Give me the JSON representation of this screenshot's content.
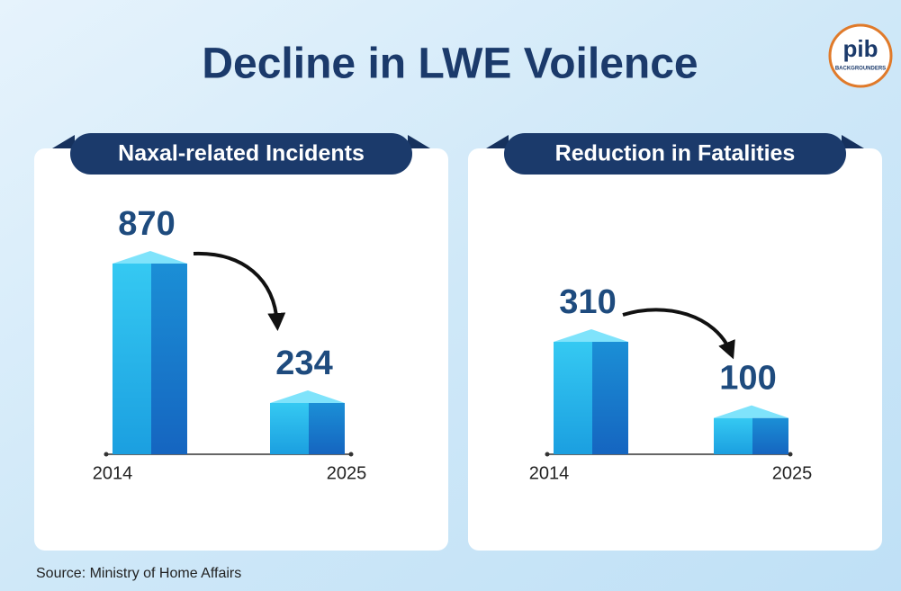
{
  "title": "Decline in LWE Voilence",
  "source": "Source: Ministry of Home Affairs",
  "logo": {
    "text": "pib",
    "subtext": "BACKGROUNDERS"
  },
  "chart_data": [
    {
      "type": "bar",
      "title": "Naxal-related Incidents",
      "categories": [
        "2014",
        "2025"
      ],
      "values": [
        870,
        234
      ],
      "color": "#1fb5e8"
    },
    {
      "type": "bar",
      "title": "Reduction in Fatalities",
      "categories": [
        "2014",
        "2025"
      ],
      "values": [
        310,
        100
      ],
      "color": "#1fb5e8"
    }
  ]
}
